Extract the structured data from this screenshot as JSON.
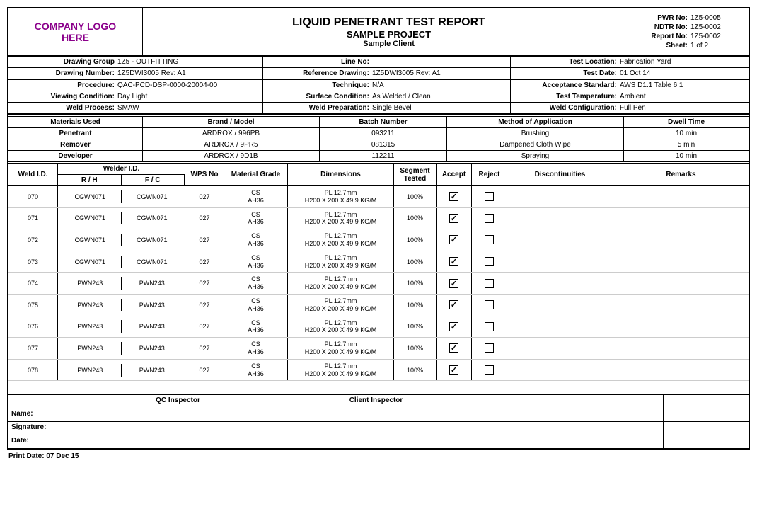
{
  "logo_text": "COMPANY LOGO\nHERE",
  "title": {
    "main": "LIQUID PENETRANT TEST REPORT",
    "project": "SAMPLE PROJECT",
    "client": "Sample Client"
  },
  "meta": {
    "pwr_lbl": "PWR No:",
    "pwr": "1Z5-0005",
    "ndtr_lbl": "NDTR No:",
    "ndtr": "1Z5-0002",
    "report_lbl": "Report No:",
    "report": "1Z5-0002",
    "sheet_lbl": "Sheet:",
    "sheet": "1 of 2"
  },
  "info": [
    [
      {
        "l": "Drawing Group",
        "v": "1Z5 - OUTFITTING"
      },
      {
        "l": "Line No:",
        "v": ""
      },
      {
        "l": "Test Location:",
        "v": "Fabrication Yard"
      }
    ],
    [
      {
        "l": "Drawing Number:",
        "v": "1Z5DWI3005 Rev: A1"
      },
      {
        "l": "Reference Drawing:",
        "v": "1Z5DWI3005 Rev: A1"
      },
      {
        "l": "Test Date:",
        "v": "01 Oct 14"
      }
    ],
    [
      {
        "l": "Procedure:",
        "v": "QAC-PCD-DSP-0000-20004-00"
      },
      {
        "l": "Technique:",
        "v": "N/A"
      },
      {
        "l": "Acceptance Standard:",
        "v": "AWS D1.1 Table 6.1"
      }
    ],
    [
      {
        "l": "Viewing Condition:",
        "v": "Day Light"
      },
      {
        "l": "Surface Condition:",
        "v": "As Welded / Clean"
      },
      {
        "l": "Test Temperature:",
        "v": "Ambient"
      }
    ],
    [
      {
        "l": "Weld Process:",
        "v": "SMAW"
      },
      {
        "l": "Weld Preparation:",
        "v": "Single Bevel"
      },
      {
        "l": "Weld Configuration:",
        "v": "Full Pen"
      }
    ]
  ],
  "materials": {
    "headers": [
      "Materials Used",
      "Brand / Model",
      "Batch Number",
      "Method of Application",
      "Dwell Time"
    ],
    "rows": [
      [
        "Penetrant",
        "ARDROX / 996PB",
        "093211",
        "Brushing",
        "10 min"
      ],
      [
        "Remover",
        "ARDROX / 9PR5",
        "081315",
        "Dampened Cloth Wipe",
        "5 min"
      ],
      [
        "Developer",
        "ARDROX / 9D1B",
        "112211",
        "Spraying",
        "10 min"
      ]
    ]
  },
  "weld_headers": {
    "weld_id": "Weld I.D.",
    "welder_id": "Welder I.D.",
    "rh": "R / H",
    "fc": "F / C",
    "wps": "WPS No",
    "grade": "Material Grade",
    "dim": "Dimensions",
    "seg": "Segment Tested",
    "accept": "Accept",
    "reject": "Reject",
    "disc": "Discontinuities",
    "remarks": "Remarks"
  },
  "welds": [
    {
      "id": "070",
      "rh": "CGWN071",
      "fc": "CGWN071",
      "wps": "027",
      "grade1": "CS",
      "grade2": "AH36",
      "dim1": "PL 12.7mm",
      "dim2": "H200 X 200 X 49.9 KG/M",
      "seg": "100%",
      "accept": true,
      "reject": false,
      "disc": "",
      "remarks": ""
    },
    {
      "id": "071",
      "rh": "CGWN071",
      "fc": "CGWN071",
      "wps": "027",
      "grade1": "CS",
      "grade2": "AH36",
      "dim1": "PL 12.7mm",
      "dim2": "H200 X 200 X 49.9 KG/M",
      "seg": "100%",
      "accept": true,
      "reject": false,
      "disc": "",
      "remarks": ""
    },
    {
      "id": "072",
      "rh": "CGWN071",
      "fc": "CGWN071",
      "wps": "027",
      "grade1": "CS",
      "grade2": "AH36",
      "dim1": "PL 12.7mm",
      "dim2": "H200 X 200 X 49.9 KG/M",
      "seg": "100%",
      "accept": true,
      "reject": false,
      "disc": "",
      "remarks": ""
    },
    {
      "id": "073",
      "rh": "CGWN071",
      "fc": "CGWN071",
      "wps": "027",
      "grade1": "CS",
      "grade2": "AH36",
      "dim1": "PL 12.7mm",
      "dim2": "H200 X 200 X 49.9 KG/M",
      "seg": "100%",
      "accept": true,
      "reject": false,
      "disc": "",
      "remarks": ""
    },
    {
      "id": "074",
      "rh": "PWN243",
      "fc": "PWN243",
      "wps": "027",
      "grade1": "CS",
      "grade2": "AH36",
      "dim1": "PL 12.7mm",
      "dim2": "H200 X 200 X 49.9 KG/M",
      "seg": "100%",
      "accept": true,
      "reject": false,
      "disc": "",
      "remarks": ""
    },
    {
      "id": "075",
      "rh": "PWN243",
      "fc": "PWN243",
      "wps": "027",
      "grade1": "CS",
      "grade2": "AH36",
      "dim1": "PL 12.7mm",
      "dim2": "H200 X 200 X 49.9 KG/M",
      "seg": "100%",
      "accept": true,
      "reject": false,
      "disc": "",
      "remarks": ""
    },
    {
      "id": "076",
      "rh": "PWN243",
      "fc": "PWN243",
      "wps": "027",
      "grade1": "CS",
      "grade2": "AH36",
      "dim1": "PL 12.7mm",
      "dim2": "H200 X 200 X 49.9 KG/M",
      "seg": "100%",
      "accept": true,
      "reject": false,
      "disc": "",
      "remarks": ""
    },
    {
      "id": "077",
      "rh": "PWN243",
      "fc": "PWN243",
      "wps": "027",
      "grade1": "CS",
      "grade2": "AH36",
      "dim1": "PL 12.7mm",
      "dim2": "H200 X 200 X 49.9 KG/M",
      "seg": "100%",
      "accept": true,
      "reject": false,
      "disc": "",
      "remarks": ""
    },
    {
      "id": "078",
      "rh": "PWN243",
      "fc": "PWN243",
      "wps": "027",
      "grade1": "CS",
      "grade2": "AH36",
      "dim1": "PL 12.7mm",
      "dim2": "H200 X 200 X 49.9 KG/M",
      "seg": "100%",
      "accept": true,
      "reject": false,
      "disc": "",
      "remarks": ""
    }
  ],
  "sig": {
    "qc": "QC Inspector",
    "client": "Client Inspector",
    "name": "Name:",
    "signature": "Signature:",
    "date": "Date:"
  },
  "print_date_lbl": "Print Date:",
  "print_date": "07 Dec 15"
}
